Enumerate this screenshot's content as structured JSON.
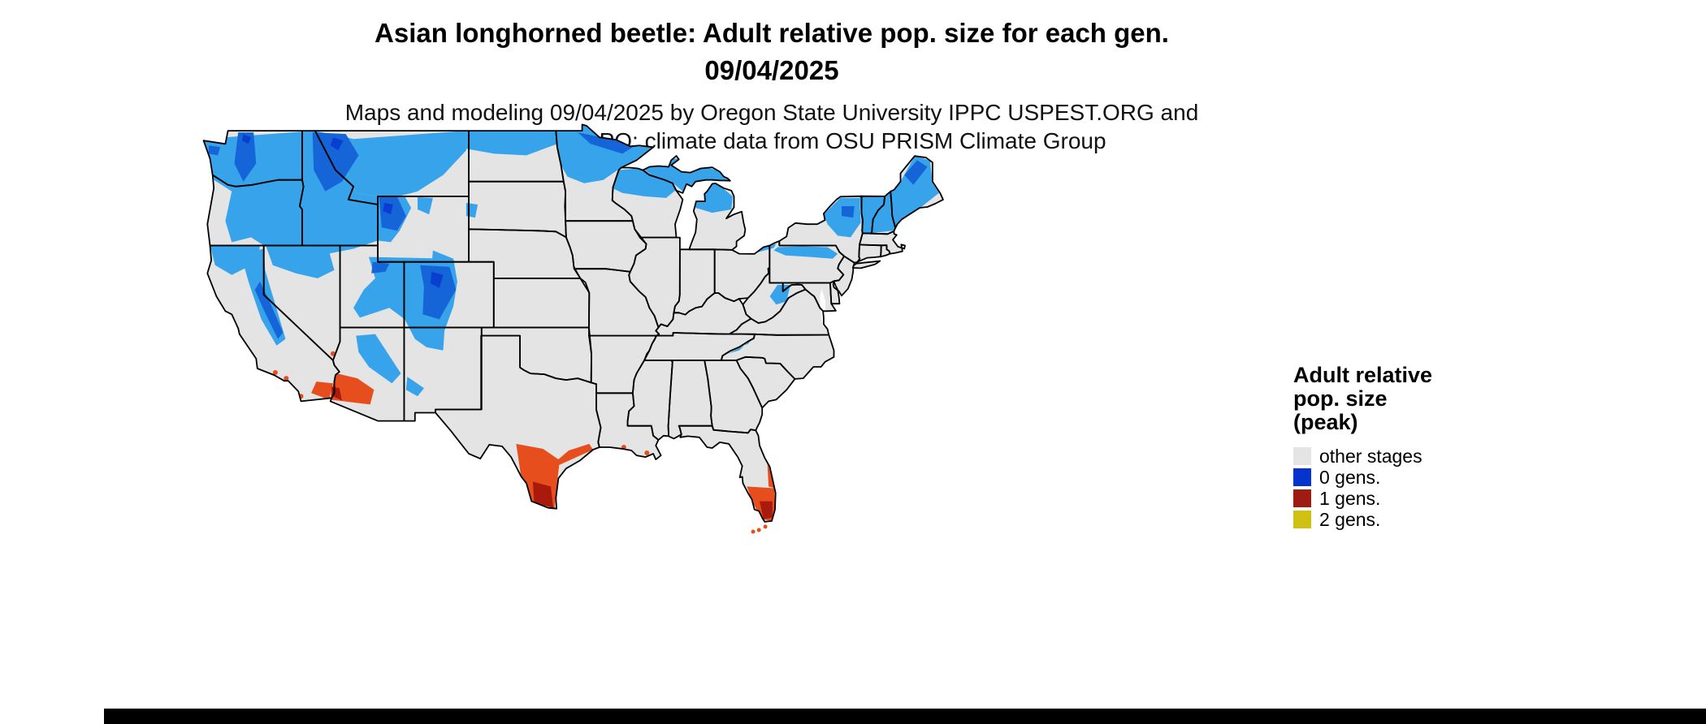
{
  "title": {
    "line1": "Asian longhorned beetle: Adult relative pop. size for each gen.",
    "line2": "09/04/2025"
  },
  "subtitle": {
    "line1": "Maps and modeling 09/04/2025 by Oregon State University IPPC USPEST.ORG and",
    "line2": "USDA-APHIS-PPQ; climate data from OSU PRISM Climate Group"
  },
  "legend": {
    "title_line1": "Adult relative",
    "title_line2": "pop. size",
    "title_line3": "(peak)",
    "items": [
      {
        "label": "other stages",
        "color": "#e4e4e4"
      },
      {
        "label": "0 gens.",
        "color": "#0534cc"
      },
      {
        "label": "1 gens.",
        "color": "#9e1c12"
      },
      {
        "label": "2 gens.",
        "color": "#d0c011"
      }
    ]
  },
  "map": {
    "region": "Conterminous United States",
    "colors": {
      "background": "#ffffff",
      "base": "#e4e4e4",
      "border": "#000000",
      "gens0_light": "#36a3ea",
      "gens0_mid": "#1565d8",
      "gens0_dark": "#0a3ed0",
      "gens1_orange": "#e64f1d",
      "gens1_dark": "#aa1a0c"
    }
  }
}
